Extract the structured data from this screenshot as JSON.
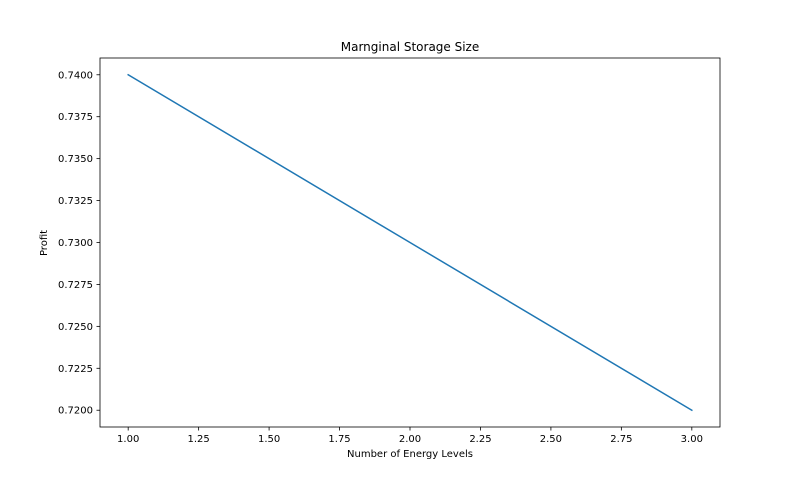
{
  "chart_data": {
    "type": "line",
    "title": "Marnginal Storage Size",
    "xlabel": "Number of Energy Levels",
    "ylabel": "Profit",
    "xlim": [
      0.9,
      3.1
    ],
    "ylim": [
      0.719,
      0.741
    ],
    "xticks": [
      1.0,
      1.25,
      1.5,
      1.75,
      2.0,
      2.25,
      2.5,
      2.75,
      3.0
    ],
    "xtick_labels": [
      "1.00",
      "1.25",
      "1.50",
      "1.75",
      "2.00",
      "2.25",
      "2.50",
      "2.75",
      "3.00"
    ],
    "yticks": [
      0.72,
      0.7225,
      0.725,
      0.7275,
      0.73,
      0.7325,
      0.735,
      0.7375,
      0.74
    ],
    "ytick_labels": [
      "0.7200",
      "0.7225",
      "0.7250",
      "0.7275",
      "0.7300",
      "0.7325",
      "0.7350",
      "0.7375",
      "0.7400"
    ],
    "grid": false,
    "series": [
      {
        "x": [
          1,
          2,
          3
        ],
        "y": [
          0.74,
          0.73,
          0.72
        ],
        "color": "#1f77b4"
      }
    ]
  }
}
